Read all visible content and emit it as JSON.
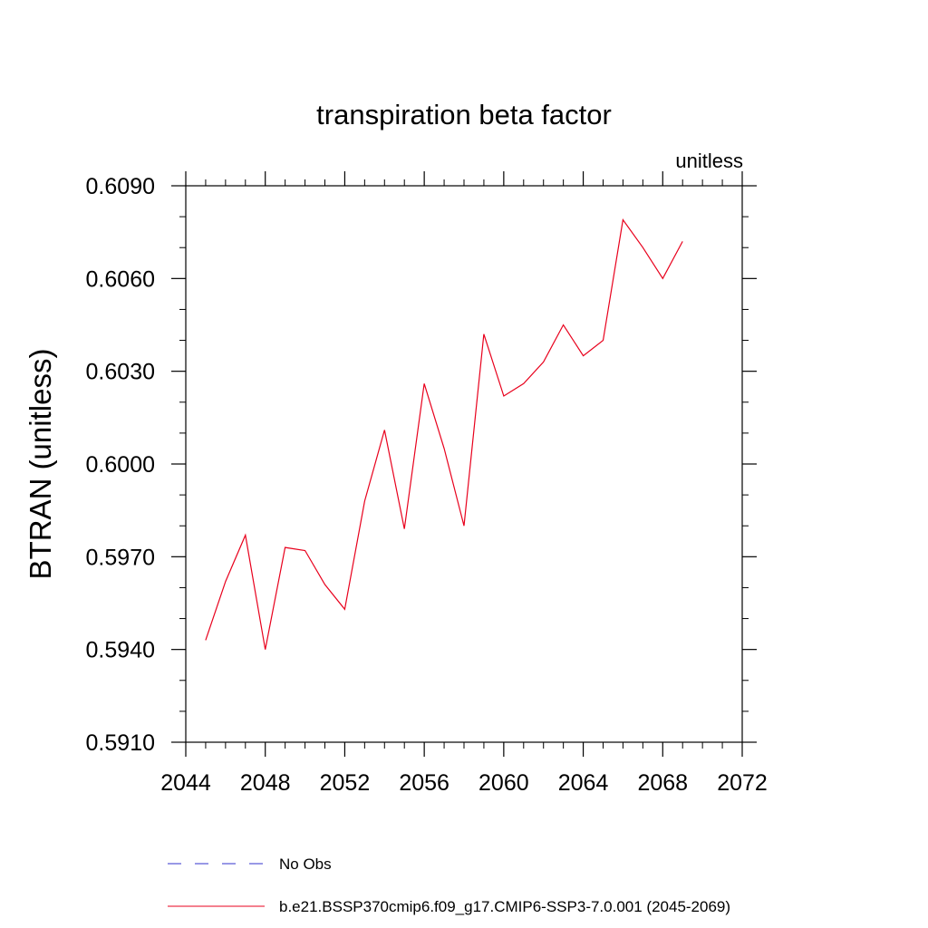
{
  "chart_data": {
    "type": "line",
    "title": "transpiration beta factor",
    "units_label": "unitless",
    "xlabel": "",
    "ylabel": "BTRAN  (unitless)",
    "xlim": [
      2044,
      2072
    ],
    "ylim": [
      0.591,
      0.609
    ],
    "x_ticks": [
      2044,
      2048,
      2052,
      2056,
      2060,
      2064,
      2068,
      2072
    ],
    "x_tick_labels": [
      "2044",
      "2048",
      "2052",
      "2056",
      "2060",
      "2064",
      "2068",
      "2072"
    ],
    "y_ticks": [
      0.591,
      0.594,
      0.597,
      0.6,
      0.603,
      0.606,
      0.609
    ],
    "y_tick_labels": [
      "0.5910",
      "0.5940",
      "0.5970",
      "0.6000",
      "0.6030",
      "0.6060",
      "0.6090"
    ],
    "grid": false,
    "legend_position": "bottom",
    "series": [
      {
        "name": "b.e21.BSSP370cmip6.f09_g17.CMIP6-SSP3-7.0.001 (2045-2069)",
        "color": "#e8001c",
        "style": "solid",
        "x": [
          2045,
          2046,
          2047,
          2048,
          2049,
          2050,
          2051,
          2052,
          2053,
          2054,
          2055,
          2056,
          2057,
          2058,
          2059,
          2060,
          2061,
          2062,
          2063,
          2064,
          2065,
          2066,
          2067,
          2068,
          2069
        ],
        "y": [
          0.5943,
          0.5962,
          0.5977,
          0.594,
          0.5973,
          0.5972,
          0.5961,
          0.5953,
          0.5988,
          0.6011,
          0.5979,
          0.6026,
          0.6005,
          0.598,
          0.6042,
          0.6022,
          0.6026,
          0.6033,
          0.6045,
          0.6035,
          0.604,
          0.6079,
          0.607,
          0.606,
          0.6072
        ]
      }
    ],
    "legend": [
      {
        "label": "No Obs",
        "color": "#3333cc",
        "style": "dashed"
      },
      {
        "label": "b.e21.BSSP370cmip6.f09_g17.CMIP6-SSP3-7.0.001 (2045-2069)",
        "color": "#e8001c",
        "style": "solid"
      }
    ]
  }
}
